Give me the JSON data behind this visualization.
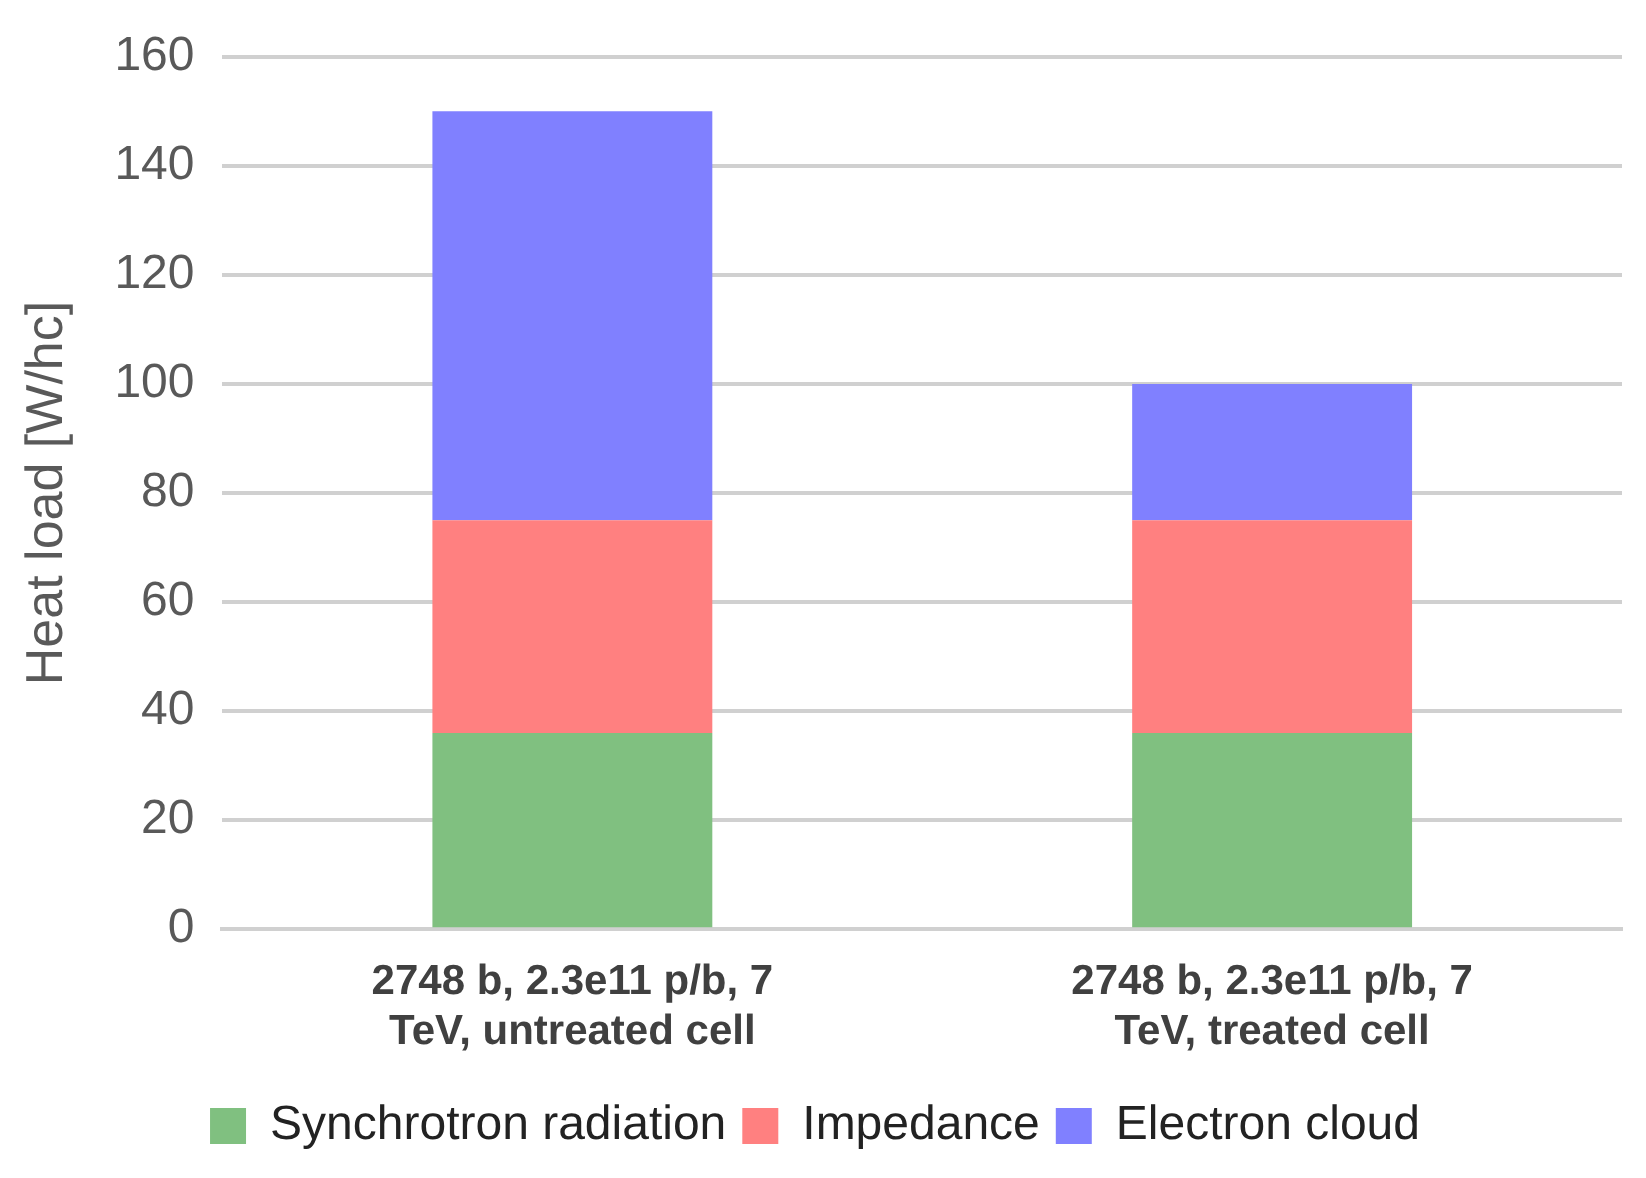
{
  "chart_data": {
    "type": "bar",
    "stacked": true,
    "ylabel": "Heat load [W/hc]",
    "categories": [
      "2748 b, 2.3e11 p/b, 7 TeV, untreated cell",
      "2748 b, 2.3e11 p/b, 7 TeV, treated cell"
    ],
    "series": [
      {
        "name": "Synchrotron radiation",
        "color": "#80c080",
        "values": [
          36,
          36
        ]
      },
      {
        "name": "Impedance",
        "color": "#ff8080",
        "values": [
          39,
          39
        ]
      },
      {
        "name": "Electron cloud",
        "color": "#8080ff",
        "values": [
          75,
          25
        ]
      }
    ],
    "ylim": [
      0,
      160
    ],
    "yticks": [
      0,
      20,
      40,
      60,
      80,
      100,
      120,
      140,
      160
    ],
    "grid": "y",
    "legend": "bottom"
  }
}
